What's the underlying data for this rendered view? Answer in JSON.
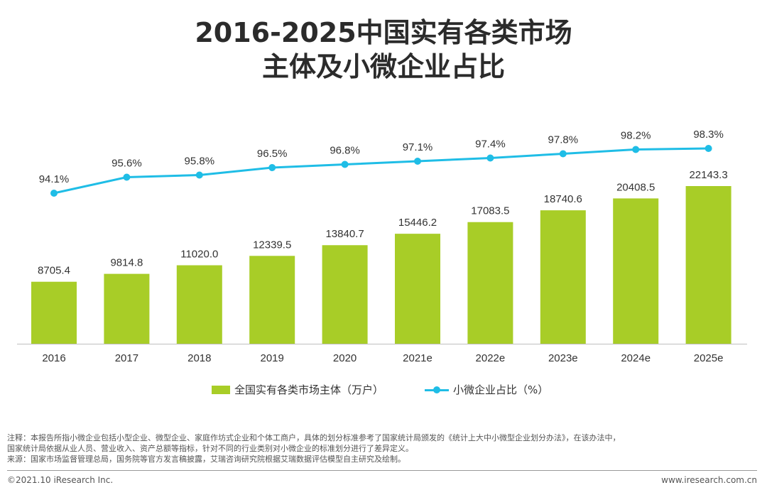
{
  "title_line1": "2016-2025中国实有各类市场",
  "title_line2": "主体及小微企业占比",
  "legend": {
    "bar": "全国实有各类市场主体（万户）",
    "line": "小微企业占比（%）"
  },
  "colors": {
    "bar": "#a8cd27",
    "line": "#1fbde6",
    "axis": "#bfbfbf"
  },
  "chart_data": {
    "type": "bar+line",
    "categories": [
      "2016",
      "2017",
      "2018",
      "2019",
      "2020",
      "2021e",
      "2022e",
      "2023e",
      "2024e",
      "2025e"
    ],
    "bar_labels": [
      "8705.4",
      "9814.8",
      "11020.0",
      "12339.5",
      "13840.7",
      "15446.2",
      "17083.5",
      "18740.6",
      "20408.5",
      "22143.3"
    ],
    "line_labels": [
      "94.1%",
      "95.6%",
      "95.8%",
      "96.5%",
      "96.8%",
      "97.1%",
      "97.4%",
      "97.8%",
      "98.2%",
      "98.3%"
    ],
    "series": [
      {
        "name": "全国实有各类市场主体（万户）",
        "type": "bar",
        "values": [
          8705.4,
          9814.8,
          11020.0,
          12339.5,
          13840.7,
          15446.2,
          17083.5,
          18740.6,
          20408.5,
          22143.3
        ]
      },
      {
        "name": "小微企业占比（%）",
        "type": "line",
        "values": [
          94.1,
          95.6,
          95.8,
          96.5,
          96.8,
          97.1,
          97.4,
          97.8,
          98.2,
          98.3
        ]
      }
    ],
    "legend_position": "bottom-center",
    "grid": false
  },
  "notes": [
    "注释：本报告所指小微企业包括小型企业、微型企业、家庭作坊式企业和个体工商户，具体的划分标准参考了国家统计局颁发的《统计上大中小微型企业划分办法》，在该办法中，",
    "国家统计局依据从业人员、营业收入、资产总额等指标，针对不同的行业类别对小微企业的标准划分进行了差异定义。",
    "来源：国家市场监督管理总局，国务院等官方发言稿披露，艾瑞咨询研究院根据艾瑞数据评估模型自主研究及绘制。"
  ],
  "footer": {
    "copyright": "©2021.10 iResearch Inc.",
    "website": "www.iresearch.com.cn"
  }
}
